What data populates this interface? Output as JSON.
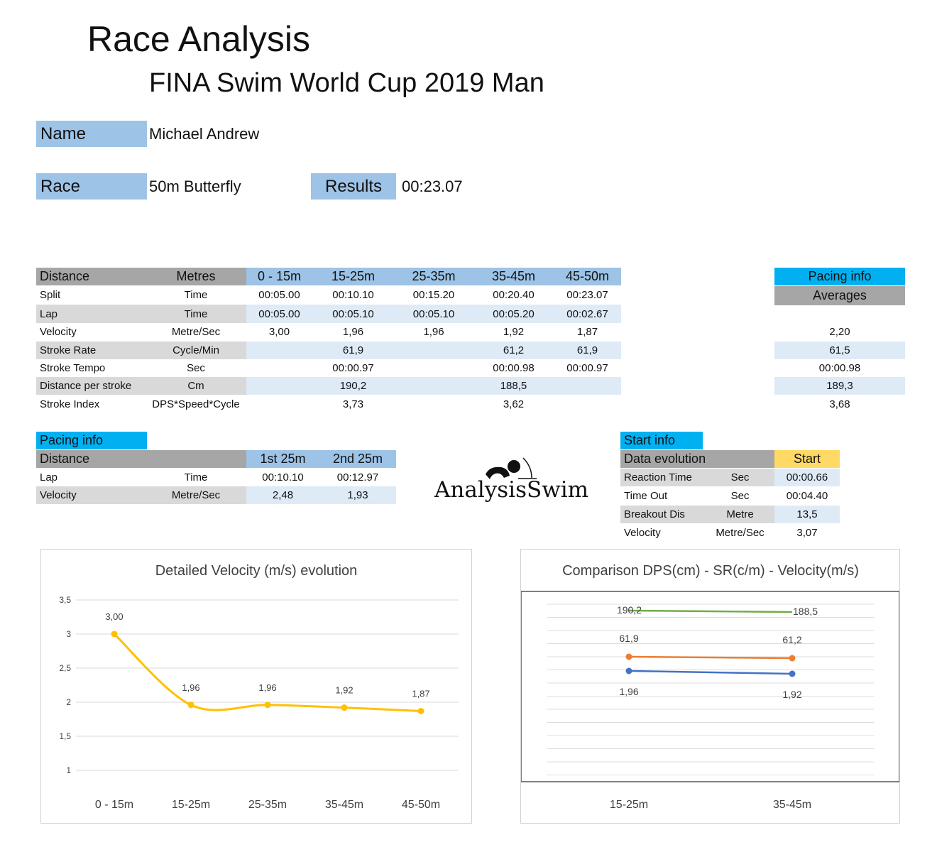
{
  "header": {
    "title": "Race Analysis",
    "subtitle": "FINA Swim World Cup 2019 Man"
  },
  "info": {
    "name_label": "Name",
    "name": "Michael Andrew",
    "race_label": "Race",
    "race": "50m Butterfly",
    "results_label": "Results",
    "results": "00:23.07"
  },
  "main_table": {
    "headers": [
      "Distance",
      "Metres",
      "0 - 15m",
      "15-25m",
      "25-35m",
      "35-45m",
      "45-50m"
    ],
    "rows": [
      {
        "label": "Split",
        "unit": "Time",
        "values": [
          "00:05.00",
          "00:10.10",
          "00:15.20",
          "00:20.40",
          "00:23.07"
        ]
      },
      {
        "label": "Lap",
        "unit": "Time",
        "values": [
          "00:05.00",
          "00:05.10",
          "00:05.10",
          "00:05.20",
          "00:02.67"
        ]
      },
      {
        "label": "Velocity",
        "unit": "Metre/Sec",
        "values": [
          "3,00",
          "1,96",
          "1,96",
          "1,92",
          "1,87"
        ]
      },
      {
        "label": "Stroke Rate",
        "unit": "Cycle/Min",
        "values": [
          "",
          "61,9",
          "",
          "61,2",
          "61,9"
        ]
      },
      {
        "label": "Stroke Tempo",
        "unit": "Sec",
        "values": [
          "",
          "00:00.97",
          "",
          "00:00.98",
          "00:00.97"
        ]
      },
      {
        "label": "Distance per stroke",
        "unit": "Cm",
        "values": [
          "",
          "190,2",
          "",
          "188,5",
          ""
        ]
      },
      {
        "label": "Stroke Index",
        "unit": "DPS*Speed*Cycle",
        "values": [
          "",
          "3,73",
          "",
          "3,62",
          ""
        ]
      }
    ]
  },
  "averages": {
    "title": "Pacing info",
    "subtitle": "Averages",
    "values": [
      "",
      "",
      "2,20",
      "61,5",
      "00:00.98",
      "189,3",
      "3,68"
    ]
  },
  "pacing": {
    "tab": "Pacing info",
    "headers": [
      "Distance",
      "1st 25m",
      "2nd 25m"
    ],
    "rows": [
      {
        "label": "Lap",
        "unit": "Time",
        "values": [
          "00:10.10",
          "00:12.97"
        ]
      },
      {
        "label": "Velocity",
        "unit": "Metre/Sec",
        "values": [
          "2,48",
          "1,93"
        ]
      }
    ]
  },
  "logo": {
    "text": "AnalysisSwim"
  },
  "start": {
    "tab": "Start info",
    "headers": [
      "Data evolution",
      "Start"
    ],
    "rows": [
      {
        "label": "Reaction Time",
        "unit": "Sec",
        "value": "00:00.66"
      },
      {
        "label": "Time Out",
        "unit": "Sec",
        "value": "00:04.40"
      },
      {
        "label": "Breakout Dis",
        "unit": "Metre",
        "value": "13,5"
      },
      {
        "label": "Velocity",
        "unit": "Metre/Sec",
        "value": "3,07"
      }
    ]
  },
  "chart_data": [
    {
      "type": "line",
      "title": "Detailed Velocity (m/s)  evolution",
      "categories": [
        "0 - 15m",
        "15-25m",
        "25-35m",
        "35-45m",
        "45-50m"
      ],
      "values": [
        3.0,
        1.96,
        1.96,
        1.92,
        1.87
      ],
      "labels": [
        "3,00",
        "1,96",
        "1,96",
        "1,92",
        "1,87"
      ],
      "yticks": [
        "3,5",
        "3",
        "2,5",
        "2",
        "1,5",
        "1"
      ],
      "ylim": [
        1,
        3.5
      ],
      "grid": true,
      "color": "#ffc000",
      "smooth": true
    },
    {
      "type": "line",
      "title": "Comparison DPS(cm) - SR(c/m) - Velocity(m/s)",
      "categories": [
        "15-25m",
        "35-45m"
      ],
      "series": [
        {
          "name": "DPS",
          "values": [
            190.2,
            188.5
          ],
          "labels": [
            "190,2",
            "188,5"
          ],
          "color": "#70ad47"
        },
        {
          "name": "SR",
          "values": [
            61.9,
            61.2
          ],
          "labels": [
            "61,9",
            "61,2"
          ],
          "color": "#ed7d31"
        },
        {
          "name": "Velocity",
          "values": [
            1.96,
            1.92
          ],
          "labels": [
            "1,96",
            "1,92"
          ],
          "color": "#4472c4"
        }
      ],
      "grid": true
    }
  ]
}
